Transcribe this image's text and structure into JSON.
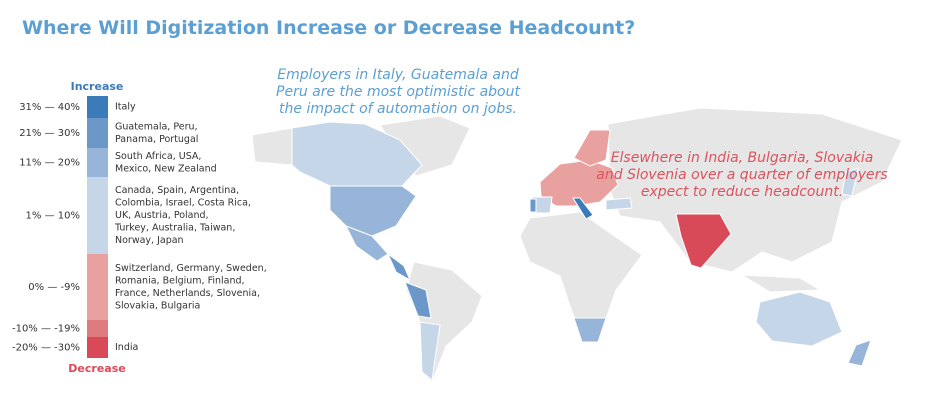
{
  "header": {
    "title": "Where Will Digitization Increase or Decrease Headcount?"
  },
  "legend": {
    "increase_label": "Increase",
    "decrease_label": "Decrease",
    "items": [
      {
        "range": "31% — 40%",
        "color": "#3b7bb9",
        "countries": [
          "Italy"
        ]
      },
      {
        "range": "21% — 30%",
        "color": "#6b98c9",
        "countries": [
          "Guatemala, Peru,",
          "Panama, Portugal"
        ]
      },
      {
        "range": "11% — 20%",
        "color": "#96b5d8",
        "countries": [
          "South Africa, USA,",
          "Mexico, New Zealand"
        ]
      },
      {
        "range": "1% — 10%",
        "color": "#c6d6e9",
        "countries": [
          "Canada, Spain, Argentina,",
          "Colombia, Israel, Costa Rica,",
          "UK, Austria, Poland,",
          "Turkey, Australia, Taiwan,",
          "Norway, Japan"
        ]
      },
      {
        "range": "0% — -9%",
        "color": "#e8a19f",
        "countries": [
          "Switzerland, Germany, Sweden,",
          "Romania, Belgium, Finland,",
          "France, Netherlands, Slovenia,",
          "Slovakia, Bulgaria"
        ]
      },
      {
        "range": "-10% — -19%",
        "color": "#de7b7e",
        "countries": []
      },
      {
        "range": "-20% — -30%",
        "color": "#d84a58",
        "countries": [
          "India"
        ]
      }
    ]
  },
  "annotations": {
    "optimistic": [
      "Employers in Italy, Guatemala and",
      "Peru are the most optimistic about",
      "the impact of automation on jobs."
    ],
    "pessimistic": [
      "Elsewhere in India, Bulgaria, Slovakia",
      "and Slovenia over a quarter of employers",
      "expect to reduce headcount."
    ]
  }
}
